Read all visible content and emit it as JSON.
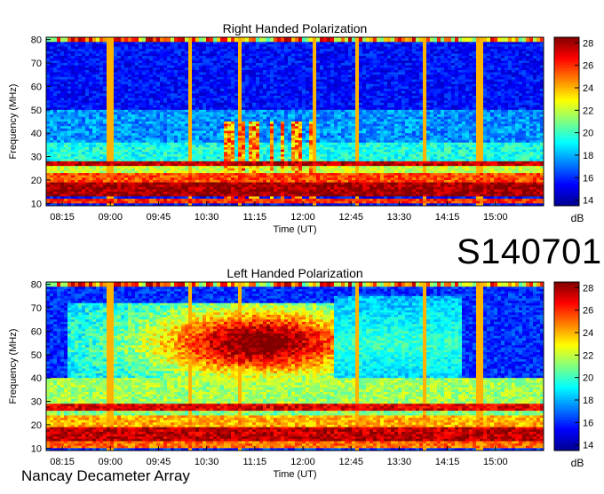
{
  "observation_id": "S140701",
  "footer_label": "Nancay Decameter Array",
  "colors": {
    "colormap": [
      "#00008f",
      "#0000ff",
      "#0080ff",
      "#00ffff",
      "#80ff80",
      "#ffff00",
      "#ff8000",
      "#ff0000",
      "#800000"
    ],
    "frame": "#000000"
  },
  "chart_data": [
    {
      "type": "heatmap",
      "title": "Right Handed Polarization",
      "xlabel": "Time (UT)",
      "ylabel": "Frequency (MHz)",
      "x_ticks": [
        "08:15",
        "09:00",
        "09:45",
        "10:30",
        "11:15",
        "12:00",
        "12:45",
        "13:30",
        "14:15",
        "15:00"
      ],
      "y_ticks": [
        10,
        20,
        30,
        40,
        50,
        60,
        70,
        80
      ],
      "ylim": [
        9,
        81
      ],
      "colorbar": {
        "label": "dB",
        "ticks": [
          14,
          16,
          18,
          20,
          22,
          24,
          26,
          28
        ],
        "range": [
          13.5,
          28.5
        ]
      },
      "features": {
        "background_db": 15.5,
        "bands": [
          {
            "f_low": 10,
            "f_high": 12.5,
            "db": 26
          },
          {
            "f_low": 13,
            "f_high": 19,
            "db": 28
          },
          {
            "f_low": 19,
            "f_high": 23,
            "db": 25.5
          },
          {
            "f_low": 23,
            "f_high": 26,
            "db": 22
          },
          {
            "f_low": 26,
            "f_high": 28.5,
            "db": 27.5
          },
          {
            "f_low": 28.5,
            "f_high": 36,
            "db": 19.5
          },
          {
            "f_low": 36,
            "f_high": 50,
            "db": 17.5
          }
        ],
        "vertical_lines_time": [
          "09:00",
          "10:15",
          "11:00",
          "12:10",
          "12:50",
          "13:55",
          "14:45"
        ],
        "burst_region": {
          "t_start": "10:45",
          "t_end": "12:10",
          "f_low": 10,
          "f_high": 45,
          "db": 22
        }
      }
    },
    {
      "type": "heatmap",
      "title": "Left Handed Polarization",
      "xlabel": "Time (UT)",
      "ylabel": "Frequency (MHz)",
      "x_ticks": [
        "08:15",
        "09:00",
        "09:45",
        "10:30",
        "11:15",
        "12:00",
        "12:45",
        "13:30",
        "14:15",
        "15:00"
      ],
      "y_ticks": [
        10,
        20,
        30,
        40,
        50,
        60,
        70,
        80
      ],
      "ylim": [
        9,
        81
      ],
      "colorbar": {
        "label": "dB",
        "ticks": [
          14,
          16,
          18,
          20,
          22,
          24,
          26,
          28
        ],
        "range": [
          13.5,
          28.5
        ]
      },
      "features": {
        "background_db": 16,
        "bands": [
          {
            "f_low": 10,
            "f_high": 13,
            "db": 25
          },
          {
            "f_low": 13,
            "f_high": 19,
            "db": 27.5
          },
          {
            "f_low": 19,
            "f_high": 24,
            "db": 24
          },
          {
            "f_low": 24,
            "f_high": 26.5,
            "db": 21
          },
          {
            "f_low": 26.5,
            "f_high": 29,
            "db": 27
          },
          {
            "f_low": 29,
            "f_high": 40,
            "db": 21.5
          }
        ],
        "vertical_lines_time": [
          "09:00",
          "10:15",
          "11:00",
          "12:50",
          "13:55",
          "14:45"
        ],
        "emission_region": {
          "t_start": "08:20",
          "t_end": "12:30",
          "f_low": 30,
          "f_high": 72,
          "peak_time": "11:20",
          "peak_freq": 55,
          "db": 26
        },
        "arc_region": {
          "t_start": "12:30",
          "t_end": "14:30",
          "f_low": 30,
          "f_high": 75,
          "db": 20
        }
      }
    }
  ]
}
